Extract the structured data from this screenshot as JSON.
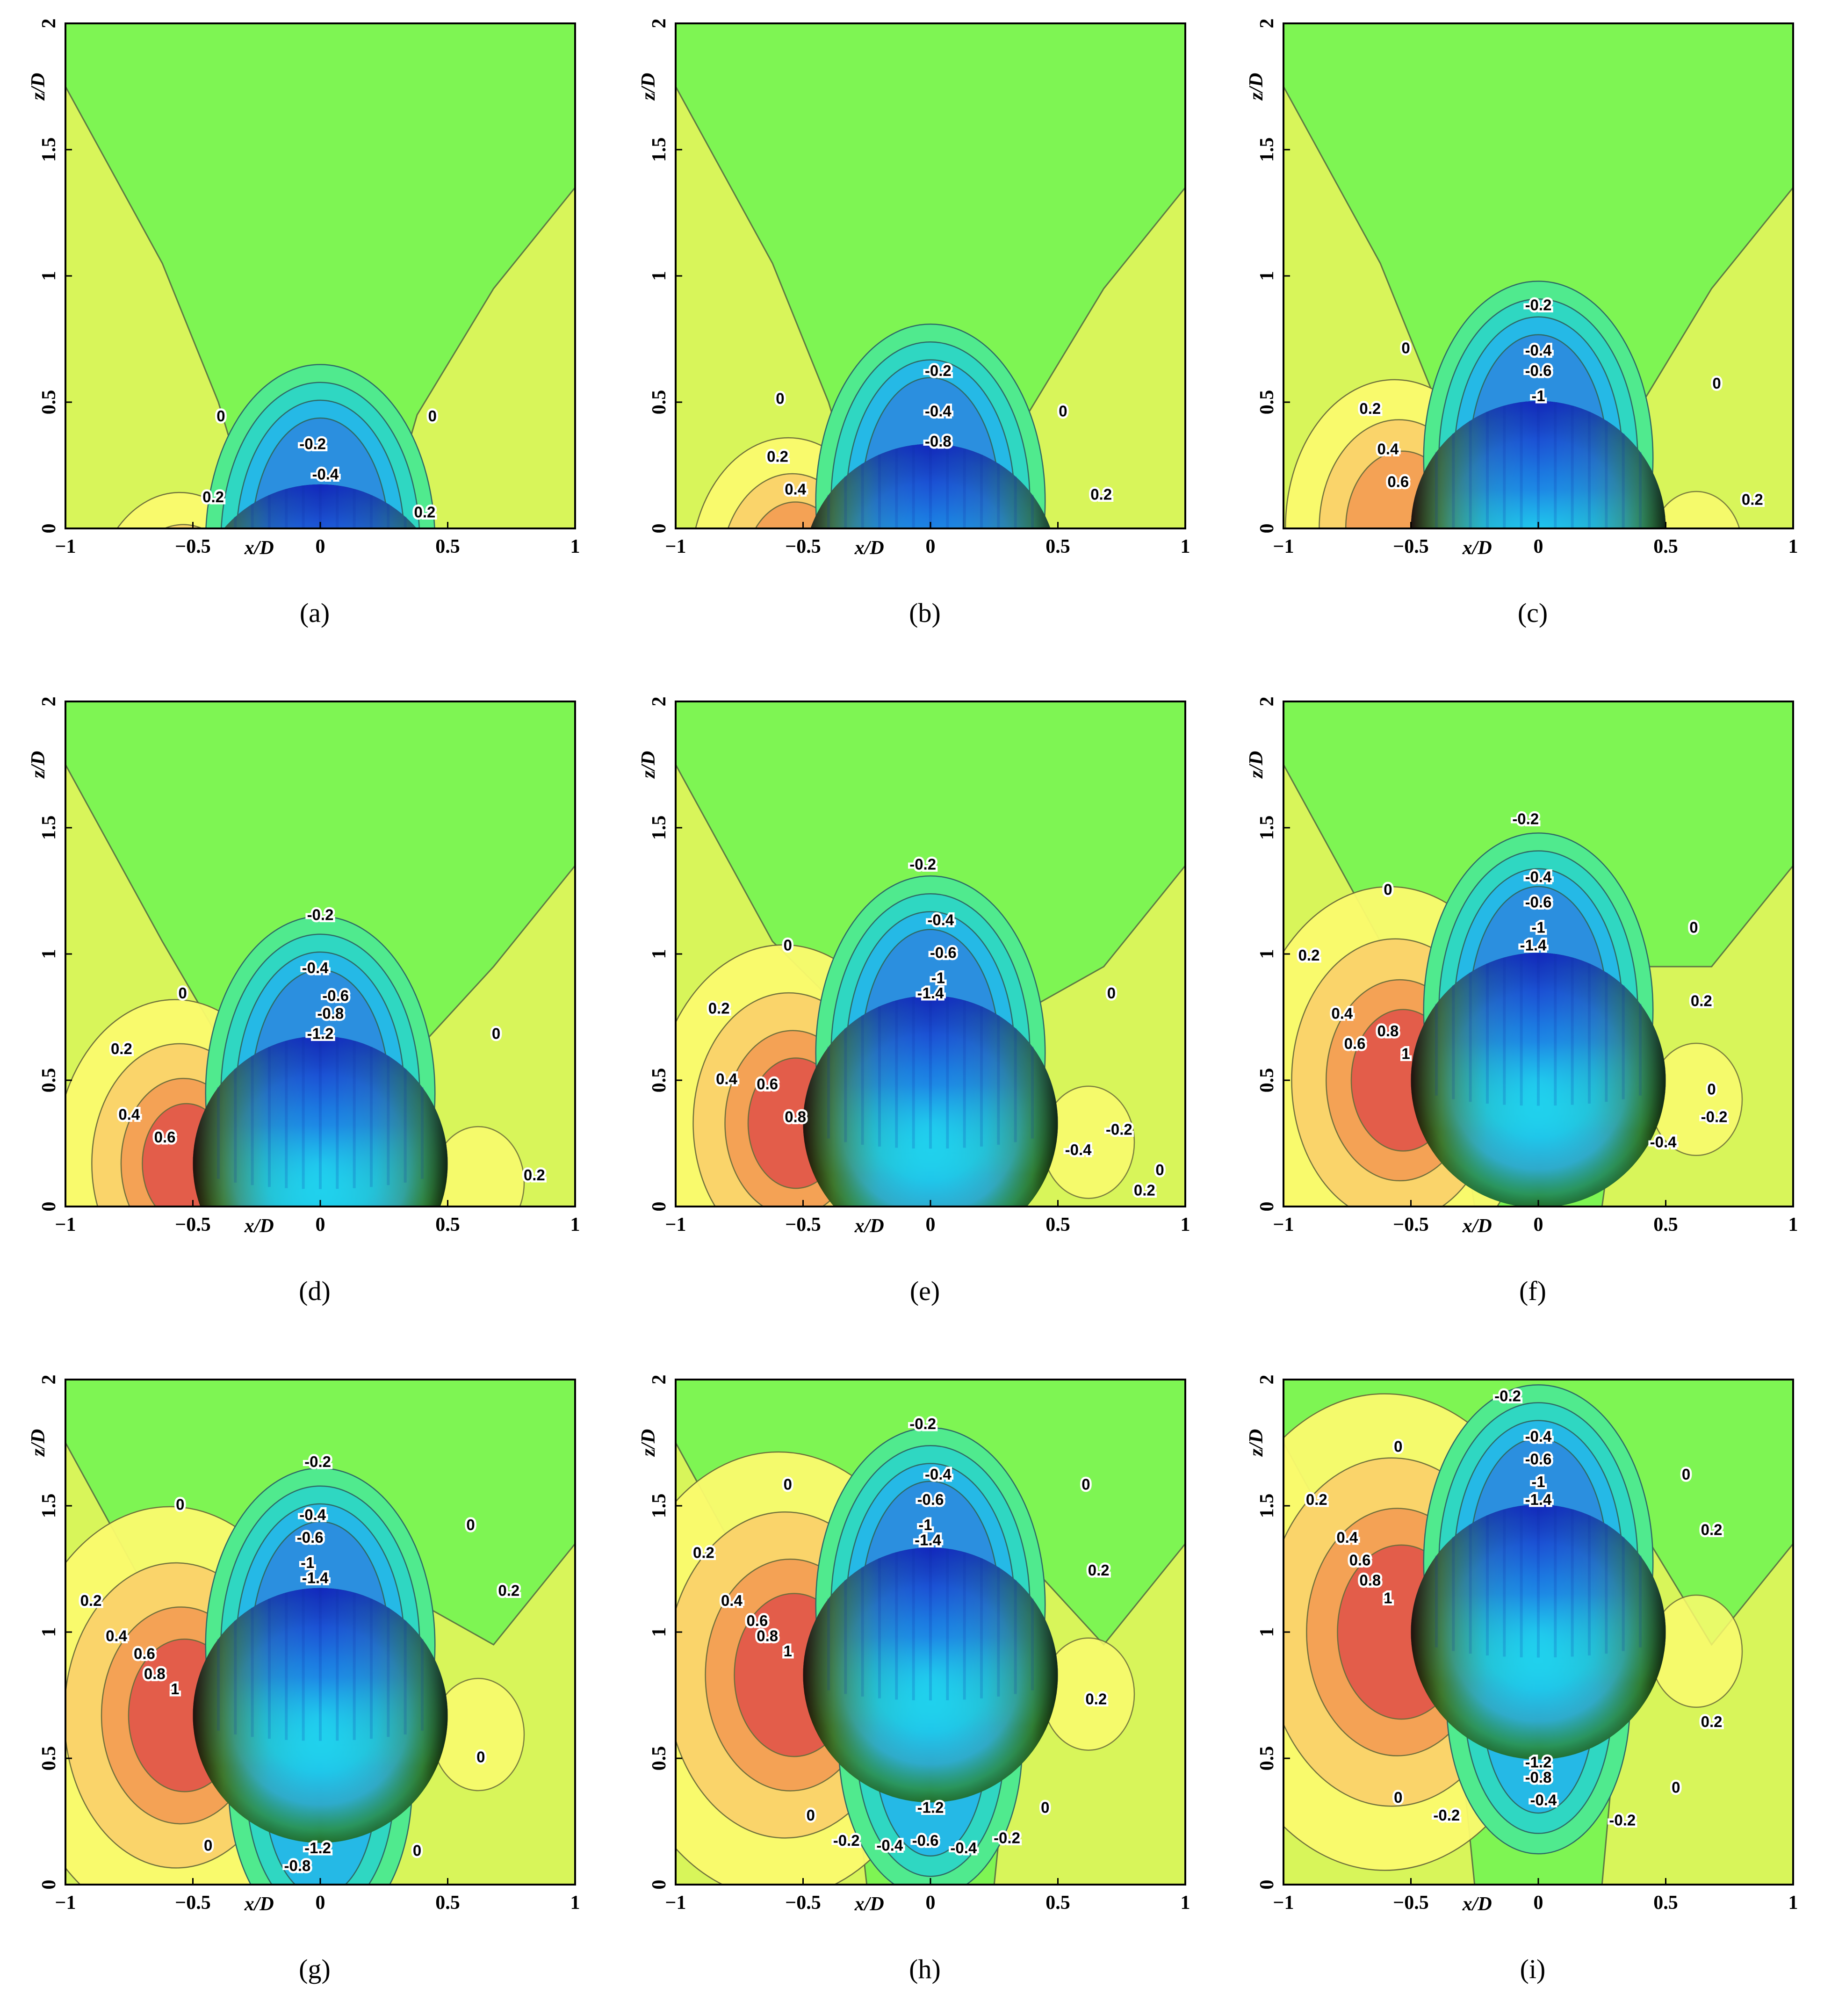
{
  "figure": {
    "panel_labels": [
      "(a)",
      "(b)",
      "(c)",
      "(d)",
      "(e)",
      "(f)",
      "(g)",
      "(h)",
      "(i)"
    ],
    "xlabel": "x/D",
    "ylabel": "z/D",
    "x_ticks": [
      "−1",
      "−0.5",
      "0",
      "0.5",
      "1"
    ],
    "y_ticks": [
      "0",
      "0.5",
      "1",
      "1.5",
      "2"
    ]
  },
  "colors": {
    "background_field": "#7ef553",
    "positive_low": "#d8f55a",
    "positive_mid": "#fbfb6e",
    "positive_high": "#fbd36a",
    "positive_peak": "#f4a054",
    "positive_max": "#e35a4a",
    "negative_low": "#50ea8e",
    "negative_mid": "#2fd7c2",
    "negative_high": "#25b9e6",
    "sphere_top": "#1a3bd6",
    "sphere_mid": "#19d3e6",
    "sphere_bottom": "#3bc93a"
  },
  "chart_data": [
    {
      "type": "contour",
      "panel": "(a)",
      "xlim": [
        -1,
        1
      ],
      "ylim": [
        0,
        2
      ],
      "sphere": {
        "x": 0.0,
        "z": -0.33,
        "r": 0.5
      },
      "contour_labels": [
        {
          "text": "-0.2",
          "x": -0.03,
          "z": 0.33
        },
        {
          "text": "-0.4",
          "x": 0.02,
          "z": 0.21
        },
        {
          "text": "0",
          "x": -0.39,
          "z": 0.44
        },
        {
          "text": "0",
          "x": 0.44,
          "z": 0.44
        },
        {
          "text": "0.2",
          "x": -0.42,
          "z": 0.12
        },
        {
          "text": "0.2",
          "x": 0.41,
          "z": 0.06
        }
      ]
    },
    {
      "type": "contour",
      "panel": "(b)",
      "xlim": [
        -1,
        1
      ],
      "ylim": [
        0,
        2
      ],
      "sphere": {
        "x": 0.0,
        "z": -0.17,
        "r": 0.5
      },
      "contour_labels": [
        {
          "text": "-0.2",
          "x": 0.03,
          "z": 0.62
        },
        {
          "text": "-0.4",
          "x": 0.03,
          "z": 0.46
        },
        {
          "text": "-0.8",
          "x": 0.03,
          "z": 0.34
        },
        {
          "text": "0",
          "x": -0.59,
          "z": 0.51
        },
        {
          "text": "0",
          "x": 0.52,
          "z": 0.46
        },
        {
          "text": "0.2",
          "x": -0.6,
          "z": 0.28
        },
        {
          "text": "0.4",
          "x": -0.53,
          "z": 0.15
        },
        {
          "text": "0.2",
          "x": 0.67,
          "z": 0.13
        }
      ]
    },
    {
      "type": "contour",
      "panel": "(c)",
      "xlim": [
        -1,
        1
      ],
      "ylim": [
        0,
        2
      ],
      "sphere": {
        "x": 0.0,
        "z": 0.0,
        "r": 0.5
      },
      "contour_labels": [
        {
          "text": "-0.2",
          "x": 0.0,
          "z": 0.88
        },
        {
          "text": "-0.4",
          "x": 0.0,
          "z": 0.7
        },
        {
          "text": "-0.6",
          "x": 0.0,
          "z": 0.62
        },
        {
          "text": "-1",
          "x": 0.0,
          "z": 0.52
        },
        {
          "text": "0",
          "x": -0.52,
          "z": 0.71
        },
        {
          "text": "0",
          "x": 0.7,
          "z": 0.57
        },
        {
          "text": "0.2",
          "x": -0.66,
          "z": 0.47
        },
        {
          "text": "0.4",
          "x": -0.59,
          "z": 0.31
        },
        {
          "text": "0.6",
          "x": -0.55,
          "z": 0.18
        },
        {
          "text": "0.2",
          "x": 0.84,
          "z": 0.11
        }
      ]
    },
    {
      "type": "contour",
      "panel": "(d)",
      "xlim": [
        -1,
        1
      ],
      "ylim": [
        0,
        2
      ],
      "sphere": {
        "x": 0.0,
        "z": 0.17,
        "r": 0.5
      },
      "contour_labels": [
        {
          "text": "-0.2",
          "x": 0.0,
          "z": 1.15
        },
        {
          "text": "-0.4",
          "x": -0.02,
          "z": 0.94
        },
        {
          "text": "-0.6",
          "x": 0.06,
          "z": 0.83
        },
        {
          "text": "-0.8",
          "x": 0.04,
          "z": 0.76
        },
        {
          "text": "-1.2",
          "x": 0.0,
          "z": 0.68
        },
        {
          "text": "0",
          "x": -0.54,
          "z": 0.84
        },
        {
          "text": "0",
          "x": 0.69,
          "z": 0.68
        },
        {
          "text": "0.2",
          "x": -0.78,
          "z": 0.62
        },
        {
          "text": "0.4",
          "x": -0.75,
          "z": 0.36
        },
        {
          "text": "0.6",
          "x": -0.61,
          "z": 0.27
        },
        {
          "text": "0.2",
          "x": 0.84,
          "z": 0.12
        }
      ]
    },
    {
      "type": "contour",
      "panel": "(e)",
      "xlim": [
        -1,
        1
      ],
      "ylim": [
        0,
        2
      ],
      "sphere": {
        "x": 0.0,
        "z": 0.33,
        "r": 0.5
      },
      "contour_labels": [
        {
          "text": "-0.2",
          "x": -0.03,
          "z": 1.35
        },
        {
          "text": "-0.4",
          "x": 0.04,
          "z": 1.13
        },
        {
          "text": "-0.6",
          "x": 0.05,
          "z": 1.0
        },
        {
          "text": "-1",
          "x": 0.03,
          "z": 0.9
        },
        {
          "text": "-1.4",
          "x": 0.0,
          "z": 0.84
        },
        {
          "text": "0",
          "x": -0.56,
          "z": 1.03
        },
        {
          "text": "0",
          "x": 0.71,
          "z": 0.84
        },
        {
          "text": "0.2",
          "x": -0.83,
          "z": 0.78
        },
        {
          "text": "0.4",
          "x": -0.8,
          "z": 0.5
        },
        {
          "text": "0.6",
          "x": -0.64,
          "z": 0.48
        },
        {
          "text": "0.8",
          "x": -0.53,
          "z": 0.35
        },
        {
          "text": "-0.2",
          "x": 0.74,
          "z": 0.3
        },
        {
          "text": "-0.4",
          "x": 0.58,
          "z": 0.22
        },
        {
          "text": "0",
          "x": 0.9,
          "z": 0.14
        },
        {
          "text": "0.2",
          "x": 0.84,
          "z": 0.06
        }
      ]
    },
    {
      "type": "contour",
      "panel": "(f)",
      "xlim": [
        -1,
        1
      ],
      "ylim": [
        0,
        2
      ],
      "sphere": {
        "x": 0.0,
        "z": 0.5,
        "r": 0.5
      },
      "contour_labels": [
        {
          "text": "-0.2",
          "x": -0.05,
          "z": 1.53
        },
        {
          "text": "-0.4",
          "x": 0.0,
          "z": 1.3
        },
        {
          "text": "-0.6",
          "x": 0.0,
          "z": 1.2
        },
        {
          "text": "-1",
          "x": 0.0,
          "z": 1.1
        },
        {
          "text": "-1.4",
          "x": -0.02,
          "z": 1.03
        },
        {
          "text": "0",
          "x": -0.59,
          "z": 1.25
        },
        {
          "text": "0",
          "x": 0.61,
          "z": 1.1
        },
        {
          "text": "0.2",
          "x": -0.9,
          "z": 0.99
        },
        {
          "text": "0.2",
          "x": 0.64,
          "z": 0.81
        },
        {
          "text": "0.4",
          "x": -0.77,
          "z": 0.76
        },
        {
          "text": "0.6",
          "x": -0.72,
          "z": 0.64
        },
        {
          "text": "0.8",
          "x": -0.59,
          "z": 0.69
        },
        {
          "text": "1",
          "x": -0.52,
          "z": 0.6
        },
        {
          "text": "0",
          "x": 0.68,
          "z": 0.46
        },
        {
          "text": "-0.2",
          "x": 0.69,
          "z": 0.35
        },
        {
          "text": "-0.4",
          "x": 0.49,
          "z": 0.25
        }
      ]
    },
    {
      "type": "contour",
      "panel": "(g)",
      "xlim": [
        -1,
        1
      ],
      "ylim": [
        0,
        2
      ],
      "sphere": {
        "x": 0.0,
        "z": 0.67,
        "r": 0.5
      },
      "contour_labels": [
        {
          "text": "-0.2",
          "x": -0.01,
          "z": 1.67
        },
        {
          "text": "-0.4",
          "x": -0.03,
          "z": 1.46
        },
        {
          "text": "-0.6",
          "x": -0.04,
          "z": 1.37
        },
        {
          "text": "-1",
          "x": -0.05,
          "z": 1.27
        },
        {
          "text": "-1.4",
          "x": -0.02,
          "z": 1.21
        },
        {
          "text": "0",
          "x": -0.55,
          "z": 1.5
        },
        {
          "text": "0",
          "x": 0.59,
          "z": 1.42
        },
        {
          "text": "0.2",
          "x": -0.9,
          "z": 1.12
        },
        {
          "text": "0.2",
          "x": 0.74,
          "z": 1.16
        },
        {
          "text": "0.4",
          "x": -0.8,
          "z": 0.98
        },
        {
          "text": "0.6",
          "x": -0.69,
          "z": 0.91
        },
        {
          "text": "0.8",
          "x": -0.65,
          "z": 0.83
        },
        {
          "text": "1",
          "x": -0.57,
          "z": 0.77
        },
        {
          "text": "0",
          "x": 0.63,
          "z": 0.5
        },
        {
          "text": "0",
          "x": -0.44,
          "z": 0.15
        },
        {
          "text": "0",
          "x": 0.38,
          "z": 0.13
        },
        {
          "text": "-1.2",
          "x": -0.01,
          "z": 0.14
        },
        {
          "text": "-0.8",
          "x": -0.09,
          "z": 0.07
        }
      ]
    },
    {
      "type": "contour",
      "panel": "(h)",
      "xlim": [
        -1,
        1
      ],
      "ylim": [
        0,
        2
      ],
      "sphere": {
        "x": 0.0,
        "z": 0.83,
        "r": 0.5
      },
      "contour_labels": [
        {
          "text": "-0.2",
          "x": -0.03,
          "z": 1.82
        },
        {
          "text": "-0.4",
          "x": 0.03,
          "z": 1.62
        },
        {
          "text": "-0.6",
          "x": 0.0,
          "z": 1.52
        },
        {
          "text": "-1",
          "x": -0.02,
          "z": 1.42
        },
        {
          "text": "-1.4",
          "x": -0.01,
          "z": 1.36
        },
        {
          "text": "0",
          "x": -0.56,
          "z": 1.58
        },
        {
          "text": "0",
          "x": 0.61,
          "z": 1.58
        },
        {
          "text": "0.2",
          "x": -0.89,
          "z": 1.31
        },
        {
          "text": "0.2",
          "x": 0.66,
          "z": 1.24
        },
        {
          "text": "0.4",
          "x": -0.78,
          "z": 1.12
        },
        {
          "text": "0.6",
          "x": -0.68,
          "z": 1.04
        },
        {
          "text": "0.8",
          "x": -0.64,
          "z": 0.98
        },
        {
          "text": "1",
          "x": -0.56,
          "z": 0.92
        },
        {
          "text": "0.2",
          "x": 0.65,
          "z": 0.73
        },
        {
          "text": "-1.2",
          "x": 0.0,
          "z": 0.3
        },
        {
          "text": "-0.6",
          "x": -0.02,
          "z": 0.17
        },
        {
          "text": "0",
          "x": -0.47,
          "z": 0.27
        },
        {
          "text": "0",
          "x": 0.45,
          "z": 0.3
        },
        {
          "text": "-0.2",
          "x": -0.33,
          "z": 0.17
        },
        {
          "text": "-0.4",
          "x": -0.16,
          "z": 0.15
        },
        {
          "text": "-0.4",
          "x": 0.13,
          "z": 0.14
        },
        {
          "text": "-0.2",
          "x": 0.3,
          "z": 0.18
        }
      ]
    },
    {
      "type": "contour",
      "panel": "(i)",
      "xlim": [
        -1,
        1
      ],
      "ylim": [
        0,
        2
      ],
      "sphere": {
        "x": 0.0,
        "z": 1.0,
        "r": 0.5
      },
      "contour_labels": [
        {
          "text": "-0.2",
          "x": -0.12,
          "z": 1.93
        },
        {
          "text": "-0.4",
          "x": 0.0,
          "z": 1.77
        },
        {
          "text": "-0.6",
          "x": 0.0,
          "z": 1.68
        },
        {
          "text": "-1",
          "x": 0.0,
          "z": 1.59
        },
        {
          "text": "-1.4",
          "x": 0.0,
          "z": 1.52
        },
        {
          "text": "0",
          "x": -0.55,
          "z": 1.73
        },
        {
          "text": "0",
          "x": 0.58,
          "z": 1.62
        },
        {
          "text": "0.2",
          "x": -0.87,
          "z": 1.52
        },
        {
          "text": "0.2",
          "x": 0.68,
          "z": 1.4
        },
        {
          "text": "0.4",
          "x": -0.75,
          "z": 1.37
        },
        {
          "text": "0.6",
          "x": -0.7,
          "z": 1.28
        },
        {
          "text": "0.8",
          "x": -0.66,
          "z": 1.2
        },
        {
          "text": "1",
          "x": -0.59,
          "z": 1.13
        },
        {
          "text": "0.2",
          "x": 0.68,
          "z": 0.64
        },
        {
          "text": "-1.2",
          "x": 0.0,
          "z": 0.48
        },
        {
          "text": "-0.8",
          "x": 0.0,
          "z": 0.42
        },
        {
          "text": "-0.4",
          "x": 0.02,
          "z": 0.33
        },
        {
          "text": "0",
          "x": -0.55,
          "z": 0.34
        },
        {
          "text": "0",
          "x": 0.54,
          "z": 0.38
        },
        {
          "text": "-0.2",
          "x": -0.36,
          "z": 0.27
        },
        {
          "text": "-0.2",
          "x": 0.33,
          "z": 0.25
        }
      ]
    }
  ]
}
